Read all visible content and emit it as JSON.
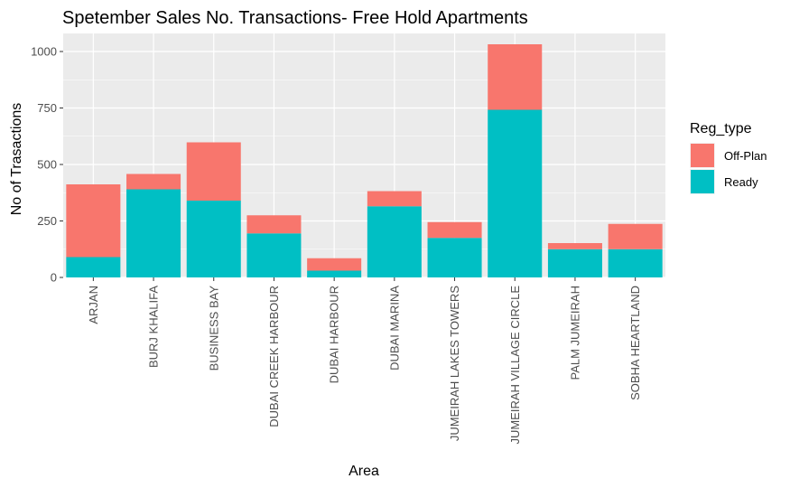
{
  "chart_data": {
    "type": "bar",
    "stacked": true,
    "title": "Spetember Sales No. Transactions- Free Hold Apartments",
    "xlabel": "Area",
    "ylabel": "No of Trasactions",
    "ylim": [
      0,
      1080
    ],
    "yticks": [
      0,
      250,
      500,
      750,
      1000
    ],
    "ytick_labels": [
      "0",
      "250",
      "500",
      "750",
      "1000"
    ],
    "grid": true,
    "legend_title": "Reg_type",
    "legend_position": "right",
    "categories": [
      "ARJAN",
      "BURJ KHALIFA",
      "BUSINESS BAY",
      "DUBAI CREEK HARBOUR",
      "DUBAI HARBOUR",
      "DUBAI MARINA",
      "JUMEIRAH LAKES TOWERS",
      "JUMEIRAH VILLAGE CIRCLE",
      "PALM JUMEIRAH",
      "SOBHA HEARTLAND"
    ],
    "series": [
      {
        "name": "Off-Plan",
        "color": "#F8766D",
        "values": [
          322,
          68,
          258,
          80,
          55,
          67,
          70,
          290,
          27,
          112
        ]
      },
      {
        "name": "Ready",
        "color": "#00BFC4",
        "values": [
          90,
          390,
          340,
          195,
          30,
          315,
          175,
          742,
          125,
          125
        ]
      }
    ],
    "stack_order_bottom_to_top": [
      "Ready",
      "Off-Plan"
    ]
  }
}
